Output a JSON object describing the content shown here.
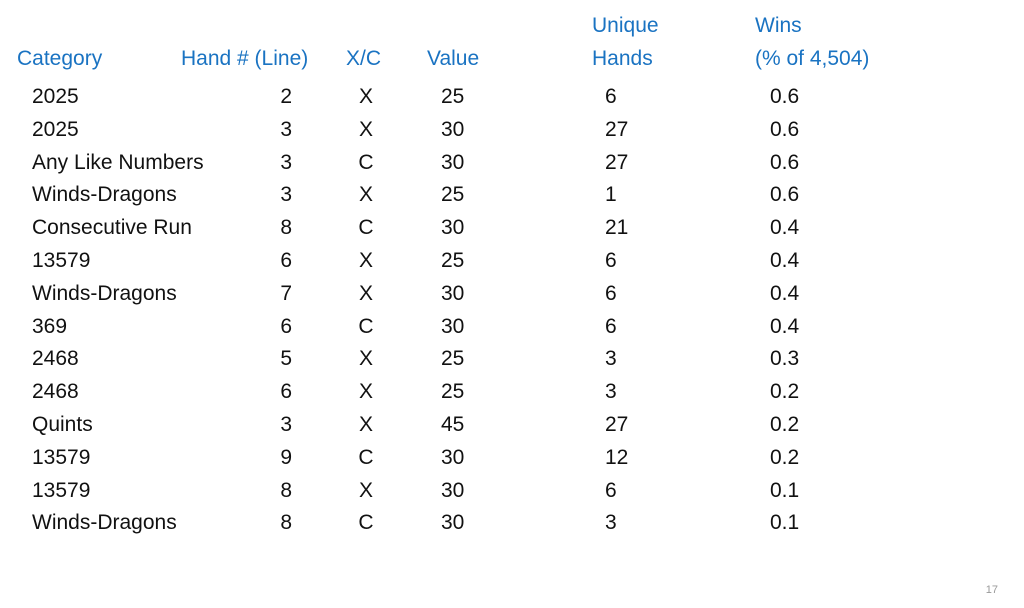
{
  "table": {
    "headers": [
      [
        "Category"
      ],
      [
        "Hand # (Line)"
      ],
      [
        "X/C"
      ],
      [
        "Value"
      ],
      [
        "Unique",
        "Hands"
      ],
      [
        "Wins",
        "(% of  4,504)"
      ]
    ],
    "rows": [
      [
        "2025",
        2,
        "X",
        25,
        6,
        0.6
      ],
      [
        "2025",
        3,
        "X",
        30,
        27,
        0.6
      ],
      [
        "Any Like Numbers",
        3,
        "C",
        30,
        27,
        0.6
      ],
      [
        "Winds-Dragons",
        3,
        "X",
        25,
        1,
        0.6
      ],
      [
        "Consecutive Run",
        8,
        "C",
        30,
        21,
        0.4
      ],
      [
        "13579",
        6,
        "X",
        25,
        6,
        0.4
      ],
      [
        "Winds-Dragons",
        7,
        "X",
        30,
        6,
        0.4
      ],
      [
        "369",
        6,
        "C",
        30,
        6,
        0.4
      ],
      [
        "2468",
        5,
        "X",
        25,
        3,
        0.3
      ],
      [
        "2468",
        6,
        "X",
        25,
        3,
        0.2
      ],
      [
        "Quints",
        3,
        "X",
        45,
        27,
        0.2
      ],
      [
        "13579",
        9,
        "C",
        30,
        12,
        0.2
      ],
      [
        "13579",
        8,
        "X",
        30,
        6,
        0.1
      ],
      [
        "Winds-Dragons",
        8,
        "C",
        30,
        3,
        0.1
      ]
    ]
  },
  "page_number": "17"
}
